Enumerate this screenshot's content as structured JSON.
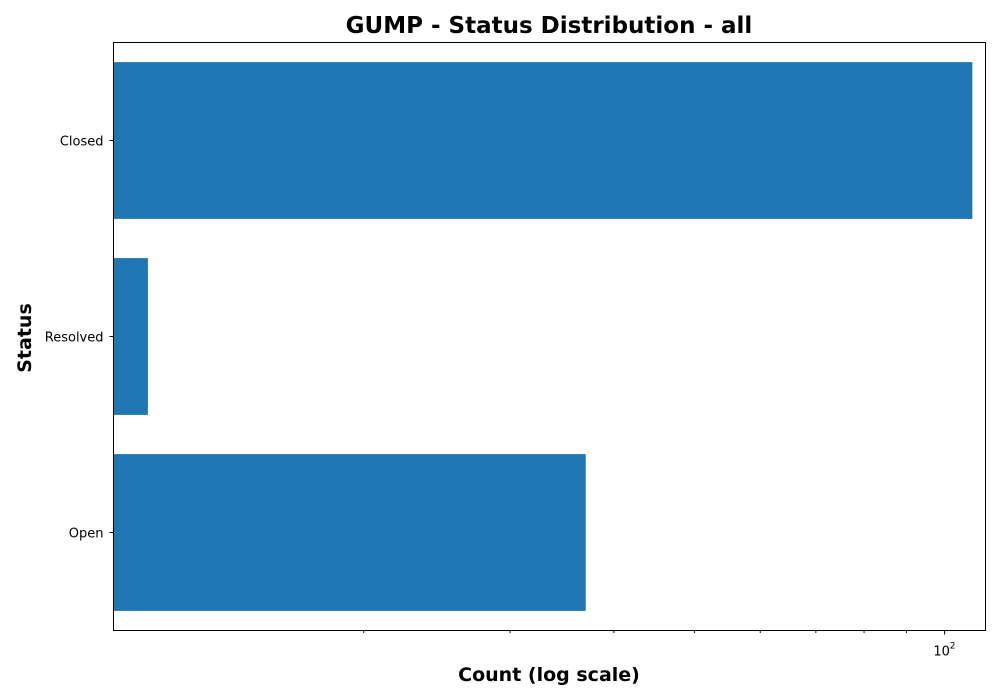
{
  "chart_data": {
    "type": "bar",
    "orientation": "horizontal",
    "title": "GUMP - Status Distribution - all",
    "xlabel": "Count (log scale)",
    "ylabel": "Status",
    "x_scale": "log",
    "xlim": [
      10,
      112
    ],
    "x_tick_label": "10",
    "x_tick_label_exp": "2",
    "x_major_tick": 100,
    "x_minor_ticks": [
      20,
      30,
      40,
      50,
      60,
      70,
      80,
      90
    ],
    "categories": [
      "Closed",
      "Resolved",
      "Open"
    ],
    "values": [
      108,
      11,
      37
    ],
    "bar_color": "#1f77b4",
    "grid": false,
    "legend": "none"
  }
}
